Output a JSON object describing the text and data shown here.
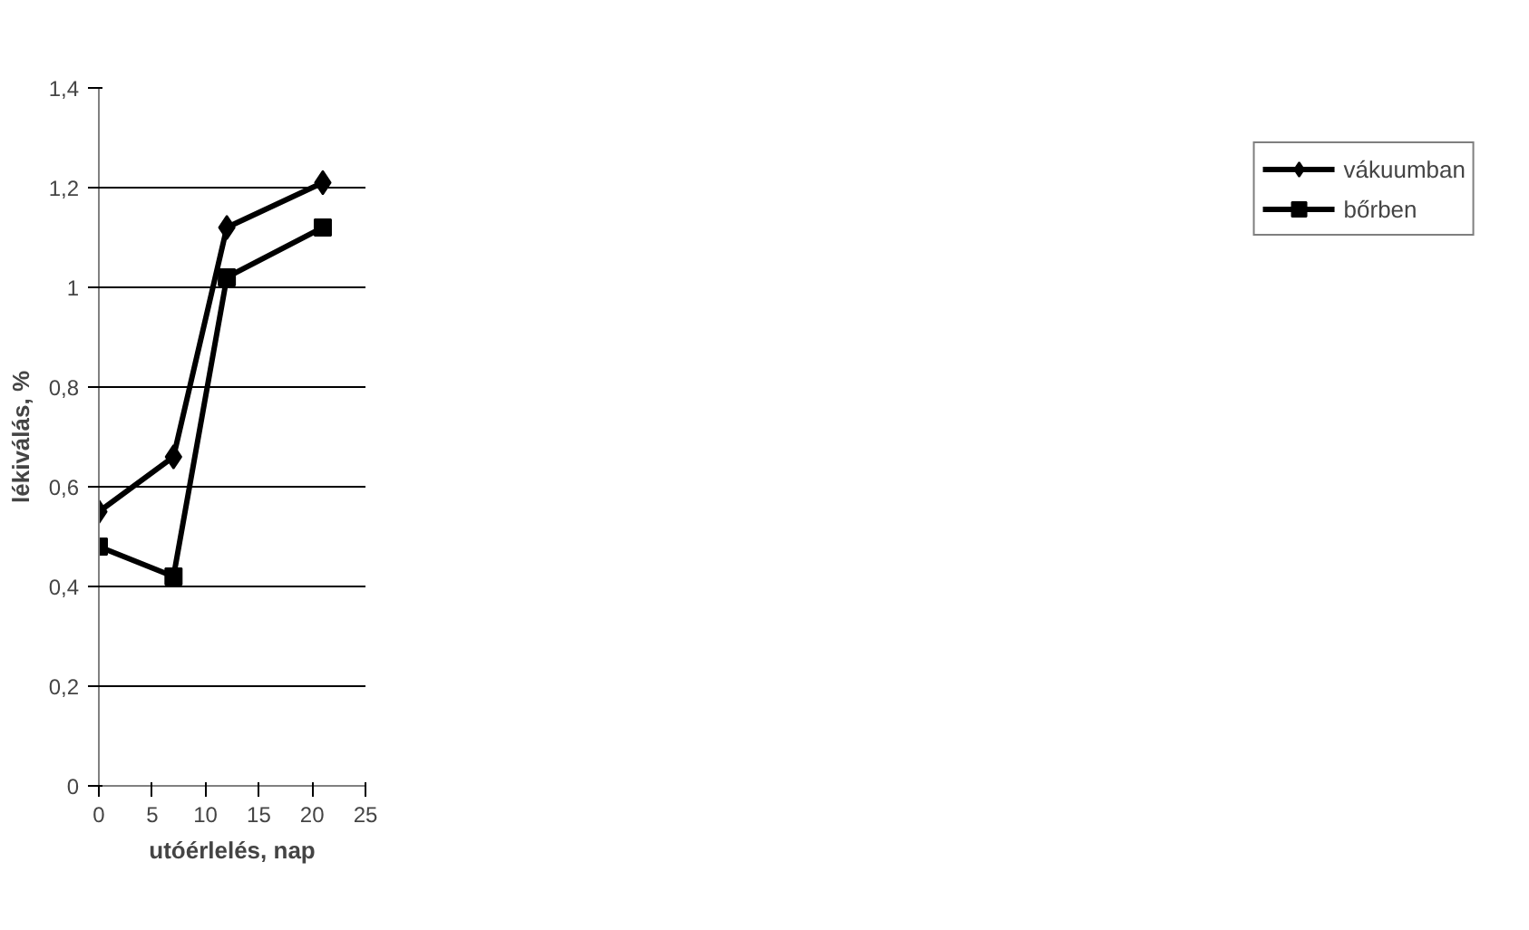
{
  "chart_data": {
    "type": "line",
    "xlabel": "utóérlelés, nap",
    "ylabel": "lékiválás, %",
    "x": [
      0,
      7,
      12,
      21
    ],
    "series": [
      {
        "name": "vákuumban",
        "color": "#000000",
        "marker": "diamond",
        "values": [
          0.55,
          0.66,
          1.12,
          1.21
        ]
      },
      {
        "name": "bőrben",
        "color": "#000000",
        "marker": "square",
        "values": [
          0.48,
          0.42,
          1.02,
          1.12
        ]
      }
    ],
    "xlim": [
      0,
      25
    ],
    "xticks": [
      0,
      5,
      10,
      15,
      20,
      25
    ],
    "ylim": [
      0,
      1.4
    ],
    "yticks": [
      0,
      {
        "value": 0.2,
        "label": "0,2"
      },
      {
        "value": 0.4,
        "label": "0,4"
      },
      {
        "value": 0.6,
        "label": "0,6"
      },
      {
        "value": 0.8,
        "label": "0,8"
      },
      1,
      {
        "value": 1.2,
        "label": "1,2"
      },
      {
        "value": 1.4,
        "label": "1,4"
      }
    ],
    "grid": "y",
    "legend": "right",
    "line_style": "solid"
  }
}
